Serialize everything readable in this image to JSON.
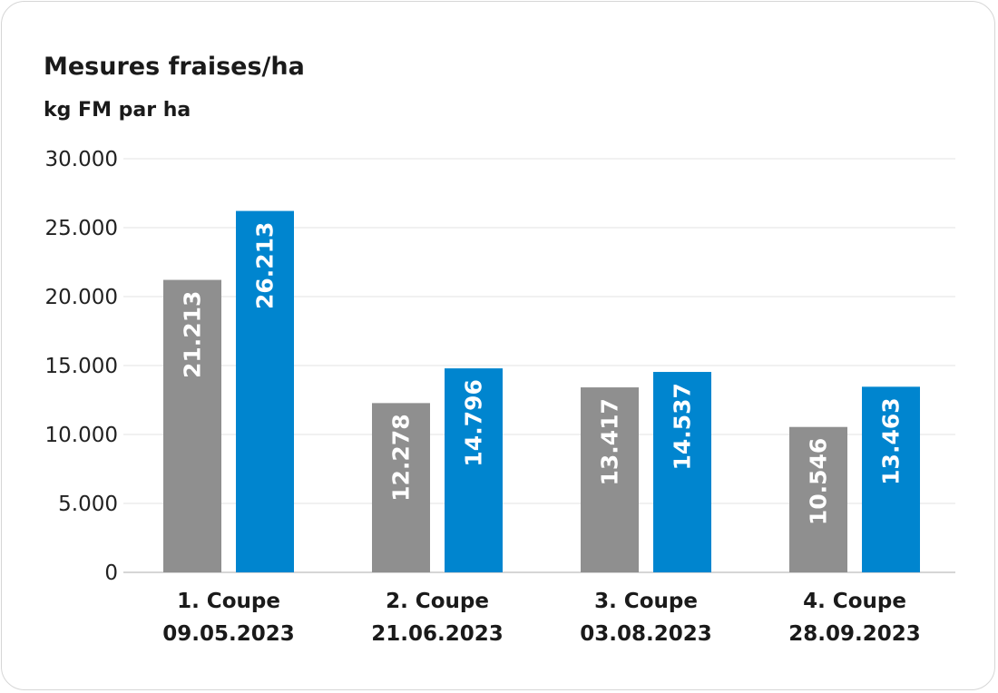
{
  "chart_data": {
    "type": "bar",
    "title": "Mesures fraises/ha",
    "ylabel": "kg FM par ha",
    "ylim": [
      0,
      30000
    ],
    "yticks": [
      0,
      5000,
      10000,
      15000,
      20000,
      25000,
      30000
    ],
    "ytick_labels": [
      "0",
      "5.000",
      "10.000",
      "15.000",
      "20.000",
      "25.000",
      "30.000"
    ],
    "categories": [
      [
        "1. Coupe",
        "09.05.2023"
      ],
      [
        "2. Coupe",
        "21.06.2023"
      ],
      [
        "3. Coupe",
        "03.08.2023"
      ],
      [
        "4. Coupe",
        "28.09.2023"
      ]
    ],
    "series": [
      {
        "color": "#8f8f8f",
        "values": [
          21213,
          12278,
          13417,
          10546
        ],
        "labels": [
          "21.213",
          "12.278",
          "13.417",
          "10.546"
        ]
      },
      {
        "color": "#0085cf",
        "values": [
          26213,
          14796,
          14537,
          13463
        ],
        "labels": [
          "26.213",
          "14.796",
          "14.537",
          "13.463"
        ]
      }
    ],
    "grid": true,
    "legend": "none"
  }
}
